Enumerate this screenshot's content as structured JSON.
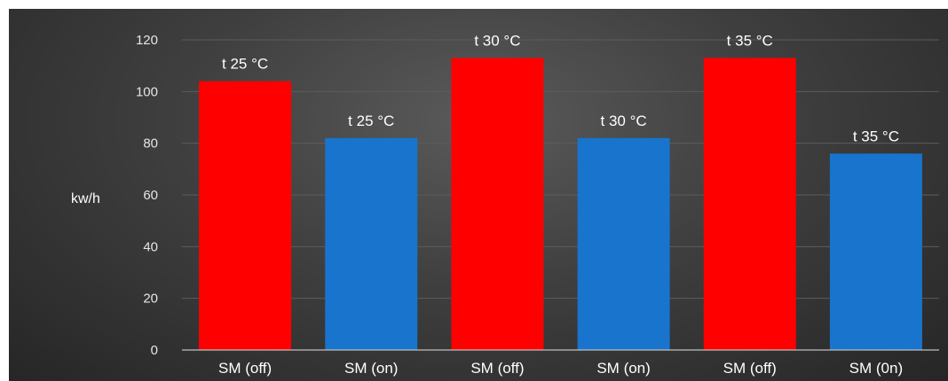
{
  "chart_data": {
    "type": "bar",
    "title": "",
    "xlabel": "",
    "ylabel": "kw/h",
    "ylim": [
      0,
      120
    ],
    "yticks": [
      0,
      20,
      40,
      60,
      80,
      100,
      120
    ],
    "grid": true,
    "categories": [
      "SM (off)",
      "SM (on)",
      "SM (off)",
      "SM (on)",
      "SM (off)",
      "SM (0n)"
    ],
    "values": [
      104,
      82,
      113,
      82,
      113,
      76
    ],
    "data_labels": [
      "t 25 °C",
      "t 25 °C",
      "t 30 °C",
      "t 30 °C",
      "t 35 °C",
      "t 35 °C"
    ],
    "colors": [
      "#ff0000",
      "#1874cd",
      "#ff0000",
      "#1874cd",
      "#ff0000",
      "#1874cd"
    ]
  }
}
